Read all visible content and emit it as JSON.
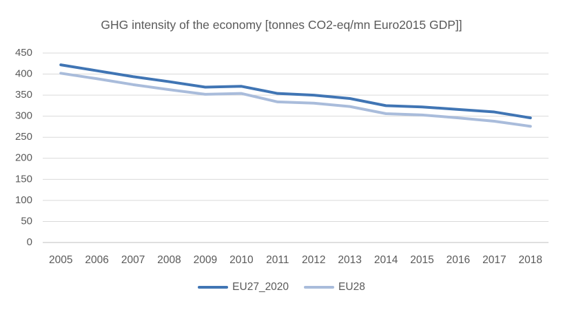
{
  "chart_data": {
    "type": "line",
    "title": "GHG intensity of the economy [tonnes CO2-eq/mn Euro2015 GDP]]",
    "categories": [
      "2005",
      "2006",
      "2007",
      "2008",
      "2009",
      "2010",
      "2011",
      "2012",
      "2013",
      "2014",
      "2015",
      "2016",
      "2017",
      "2018"
    ],
    "series": [
      {
        "name": "EU27_2020",
        "color": "#4075B4",
        "values": [
          422,
          408,
          394,
          382,
          369,
          371,
          354,
          350,
          342,
          325,
          322,
          316,
          310,
          296
        ]
      },
      {
        "name": "EU28",
        "color": "#A9BCDB",
        "values": [
          402,
          389,
          375,
          363,
          352,
          354,
          334,
          331,
          323,
          306,
          303,
          296,
          288,
          276
        ]
      }
    ],
    "xlabel": "",
    "ylabel": "",
    "ylim": [
      0,
      450
    ],
    "ytick_step": 50,
    "grid": "horizontal",
    "legend_position": "bottom",
    "colors": {
      "grid": "#D9D9D9",
      "axis": "#BFBFBF",
      "text": "#595959",
      "background": "#FFFFFF"
    }
  }
}
